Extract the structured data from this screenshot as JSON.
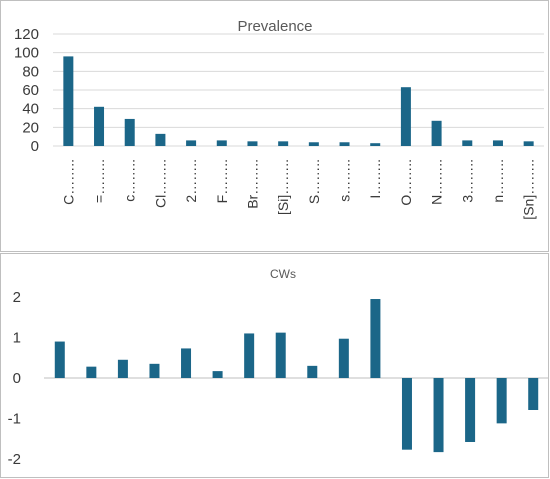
{
  "chart_data": [
    {
      "type": "bar",
      "title": "Prevalence",
      "categories": [
        "C……..",
        "=……..",
        "c……..",
        "Cl……..",
        "2……..",
        "F……..",
        "Br……..",
        "[Si]……..",
        "S……..",
        "s……..",
        "I……..",
        "O……..",
        "N……..",
        "3……..",
        "n……..",
        "[Sn]…….."
      ],
      "values": [
        96,
        42,
        29,
        13,
        6,
        6,
        5,
        5,
        4,
        4,
        3,
        63,
        27,
        6,
        6,
        5
      ],
      "ylim": [
        0,
        120
      ],
      "yticks": [
        "0",
        "20",
        "40",
        "60",
        "80",
        "100",
        "120"
      ],
      "grid": true,
      "colors": {
        "bar": "#1b6688"
      }
    },
    {
      "type": "bar",
      "title": "CWs",
      "values": [
        0.9,
        0.28,
        0.45,
        0.35,
        0.73,
        0.17,
        1.1,
        1.12,
        0.3,
        0.97,
        1.95,
        -1.77,
        -1.83,
        -1.58,
        -1.12,
        -0.79
      ],
      "ylim": [
        -2,
        2
      ],
      "yticks": [
        "-2",
        "-1",
        "0",
        "1",
        "2"
      ],
      "grid": false,
      "colors": {
        "bar": "#1b6688"
      }
    }
  ]
}
